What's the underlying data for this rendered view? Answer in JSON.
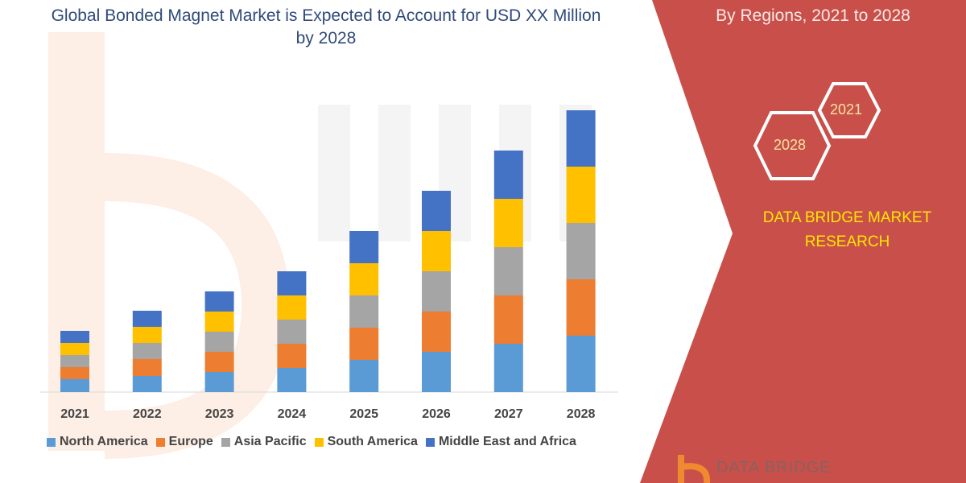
{
  "title": "Global Bonded Magnet Market is Expected to Account for USD XX Million by 2028",
  "side_title": "By Regions, 2021 to 2028",
  "hex_labels": [
    "2021",
    "2028"
  ],
  "brand": "DATA BRIDGE MARKET RESEARCH",
  "logo_text": "DATA BRIDGE",
  "colors": {
    "panel": "#c9504a",
    "north_america": "#5b9bd5",
    "europe": "#ed7d31",
    "asia_pacific": "#a5a5a5",
    "south_america": "#ffc000",
    "middle_east_africa": "#4472c4"
  },
  "chart_data": {
    "type": "bar",
    "stacked": true,
    "title": "",
    "xlabel": "",
    "ylabel": "",
    "grid": false,
    "legend": "bottom",
    "y_axis_shown": false,
    "categories": [
      "2021",
      "2022",
      "2023",
      "2024",
      "2025",
      "2026",
      "2027",
      "2028"
    ],
    "series": [
      {
        "name": "North America",
        "color": "#5b9bd5",
        "values": [
          16,
          20,
          25,
          30,
          40,
          50,
          60,
          70
        ]
      },
      {
        "name": "Europe",
        "color": "#ed7d31",
        "values": [
          15,
          21,
          25,
          30,
          40,
          50,
          60,
          70
        ]
      },
      {
        "name": "Asia Pacific",
        "color": "#a5a5a5",
        "values": [
          15,
          20,
          25,
          30,
          40,
          50,
          60,
          70
        ]
      },
      {
        "name": "South America",
        "color": "#ffc000",
        "values": [
          15,
          20,
          25,
          30,
          40,
          50,
          60,
          70
        ]
      },
      {
        "name": "Middle East and Africa",
        "color": "#4472c4",
        "values": [
          15,
          20,
          25,
          30,
          40,
          50,
          60,
          70
        ]
      }
    ]
  }
}
